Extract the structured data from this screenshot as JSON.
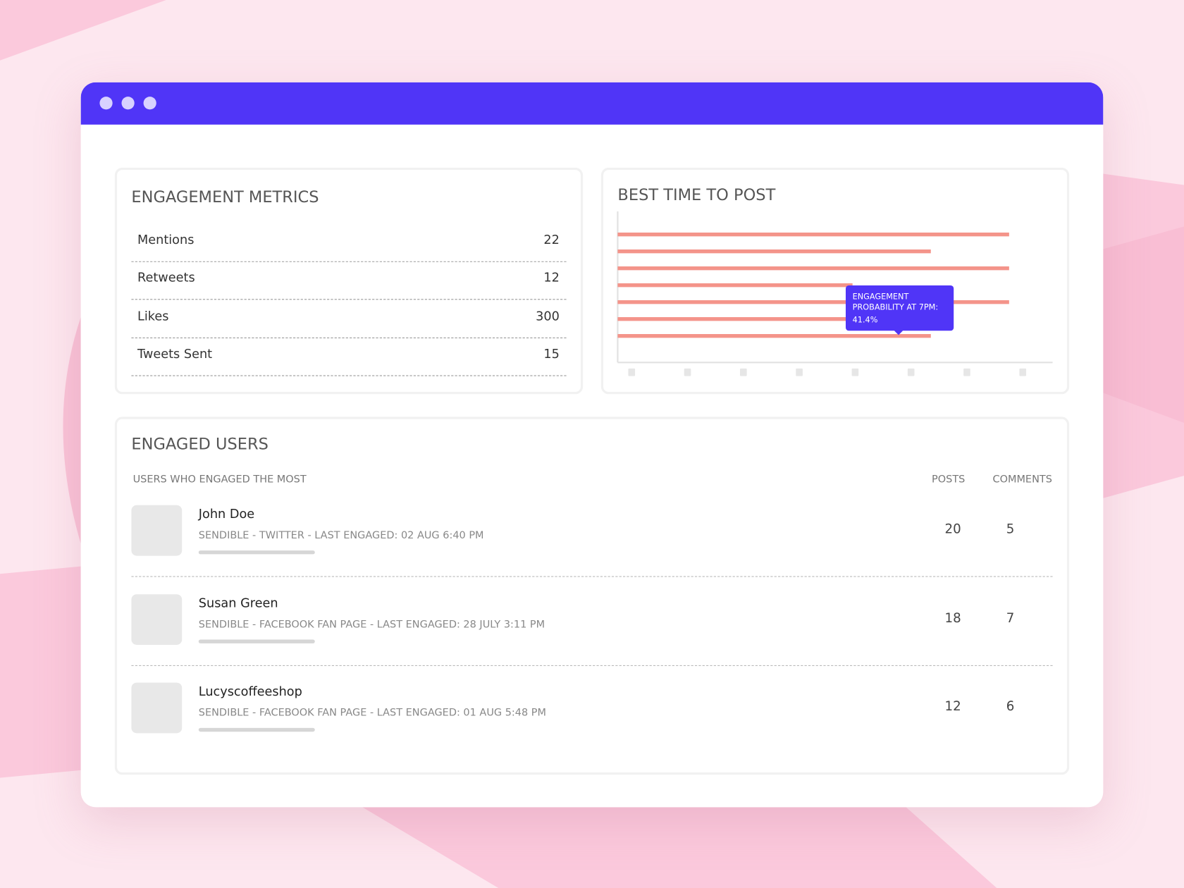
{
  "engagement_metrics": {
    "title": "ENGAGEMENT METRICS",
    "rows": [
      {
        "label": "Mentions",
        "value": 22
      },
      {
        "label": "Retweets",
        "value": 12
      },
      {
        "label": "Likes",
        "value": 300
      },
      {
        "label": "Tweets Sent",
        "value": 15
      }
    ]
  },
  "chart_data": {
    "type": "bar",
    "orientation": "horizontal",
    "title": "BEST TIME TO POST",
    "values": [
      90,
      72,
      90,
      54,
      90,
      54,
      72
    ],
    "color": "#f4948a",
    "xlim": [
      0,
      100
    ],
    "tooltip": {
      "text": "ENGAGEMENT PROBABILITY AT 7PM:",
      "value_text": "41.4%"
    }
  },
  "engaged_users": {
    "title": "ENGAGED USERS",
    "columns": [
      "USERS WHO ENGAGED THE MOST",
      "POSTS",
      "COMMENTS"
    ],
    "rows": [
      {
        "name": "John Doe",
        "detail": "SENDIBLE - TWITTER - LAST ENGAGED: 02 AUG 6:40 PM",
        "posts": 20,
        "comments": 5
      },
      {
        "name": "Susan Green",
        "detail": "SENDIBLE - FACEBOOK FAN PAGE - LAST ENGAGED: 28 JULY 3:11 PM",
        "posts": 18,
        "comments": 7
      },
      {
        "name": "Lucyscoffeeshop",
        "detail": "SENDIBLE - FACEBOOK FAN PAGE - LAST ENGAGED: 01 AUG 5:48 PM",
        "posts": 12,
        "comments": 6
      }
    ]
  }
}
